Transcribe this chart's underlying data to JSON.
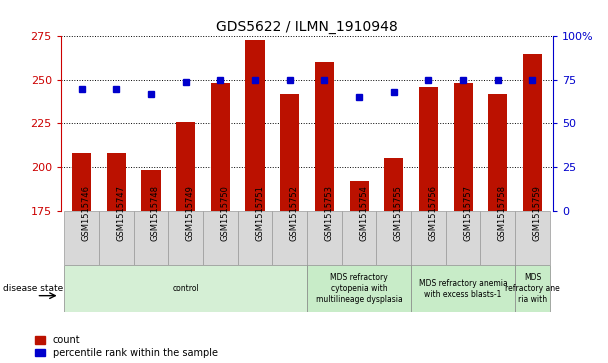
{
  "title": "GDS5622 / ILMN_1910948",
  "samples": [
    "GSM1515746",
    "GSM1515747",
    "GSM1515748",
    "GSM1515749",
    "GSM1515750",
    "GSM1515751",
    "GSM1515752",
    "GSM1515753",
    "GSM1515754",
    "GSM1515755",
    "GSM1515756",
    "GSM1515757",
    "GSM1515758",
    "GSM1515759"
  ],
  "counts": [
    208,
    208,
    198,
    226,
    248,
    273,
    242,
    260,
    192,
    205,
    246,
    248,
    242,
    265
  ],
  "percentiles": [
    70,
    70,
    67,
    74,
    75,
    75,
    75,
    75,
    65,
    68,
    75,
    75,
    75,
    75
  ],
  "ylim_left": [
    175,
    275
  ],
  "ylim_right": [
    0,
    100
  ],
  "bar_color": "#bb1100",
  "dot_color": "#0000cc",
  "grid_color": "#000000",
  "background_color": "#ffffff",
  "tick_color_left": "#cc0000",
  "tick_color_right": "#0000cc",
  "yticks_left": [
    175,
    200,
    225,
    250,
    275
  ],
  "yticks_right": [
    0,
    25,
    50,
    75,
    100
  ],
  "ytick_labels_right": [
    "0",
    "25",
    "50",
    "75",
    "100%"
  ],
  "disease_groups": [
    {
      "label": "control",
      "start": 0,
      "end": 7,
      "color": "#d5efd5"
    },
    {
      "label": "MDS refractory\ncytopenia with\nmultilineage dysplasia",
      "start": 7,
      "end": 10,
      "color": "#c8ecc8"
    },
    {
      "label": "MDS refractory anemia\nwith excess blasts-1",
      "start": 10,
      "end": 13,
      "color": "#c8ecc8"
    },
    {
      "label": "MDS\nrefractory ane\nria with",
      "start": 13,
      "end": 14,
      "color": "#c8ecc8"
    }
  ],
  "sample_bg_color": "#d8d8d8",
  "sample_border_color": "#999999"
}
